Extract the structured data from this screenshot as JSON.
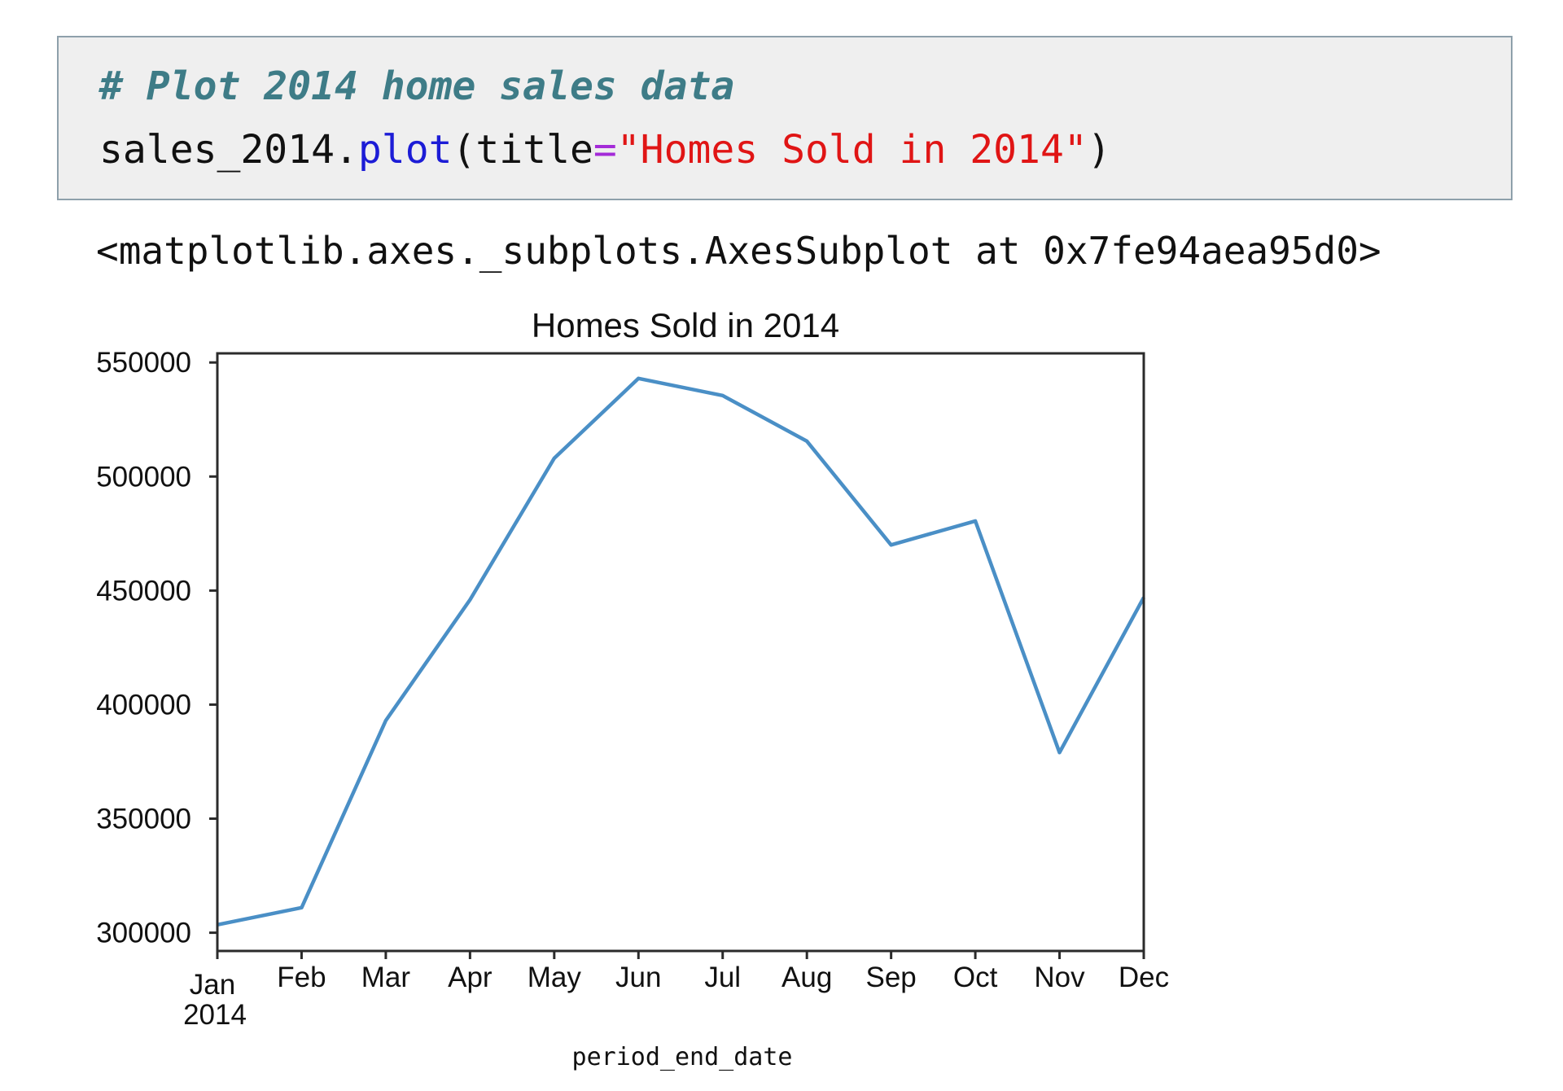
{
  "code_cell": {
    "comment": "# Plot 2014 home sales data",
    "code_object": "sales_2014.",
    "code_method": "plot",
    "code_open": "(title",
    "code_eq": "=",
    "code_string": "\"Homes Sold in 2014\"",
    "code_close": ")"
  },
  "output": {
    "repr": "<matplotlib.axes._subplots.AxesSubplot at 0x7fe94aea95d0>"
  },
  "colors": {
    "line": "#4a8fc6",
    "comment": "#3e7c87",
    "method": "#1c1cd6",
    "string": "#e01515",
    "cell_background": "#efefef",
    "cell_border": "#8ea0ab"
  },
  "chart_data": {
    "type": "line",
    "title": "Homes Sold in 2014",
    "xlabel": "period_end_date",
    "ylabel": "",
    "categories": [
      "Jan",
      "Feb",
      "Mar",
      "Apr",
      "May",
      "Jun",
      "Jul",
      "Aug",
      "Sep",
      "Oct",
      "Nov",
      "Dec"
    ],
    "year_label": "2014",
    "series": [
      {
        "values": [
          303500,
          311000,
          393000,
          446000,
          508000,
          543000,
          535500,
          515500,
          470000,
          480500,
          379000,
          447000
        ]
      }
    ],
    "ylim": [
      292000,
      554000
    ],
    "yticks": [
      300000,
      350000,
      400000,
      450000,
      500000,
      550000
    ],
    "ytick_labels": [
      "300000",
      "350000",
      "400000",
      "450000",
      "500000",
      "550000"
    ],
    "grid": false,
    "legend": false
  }
}
